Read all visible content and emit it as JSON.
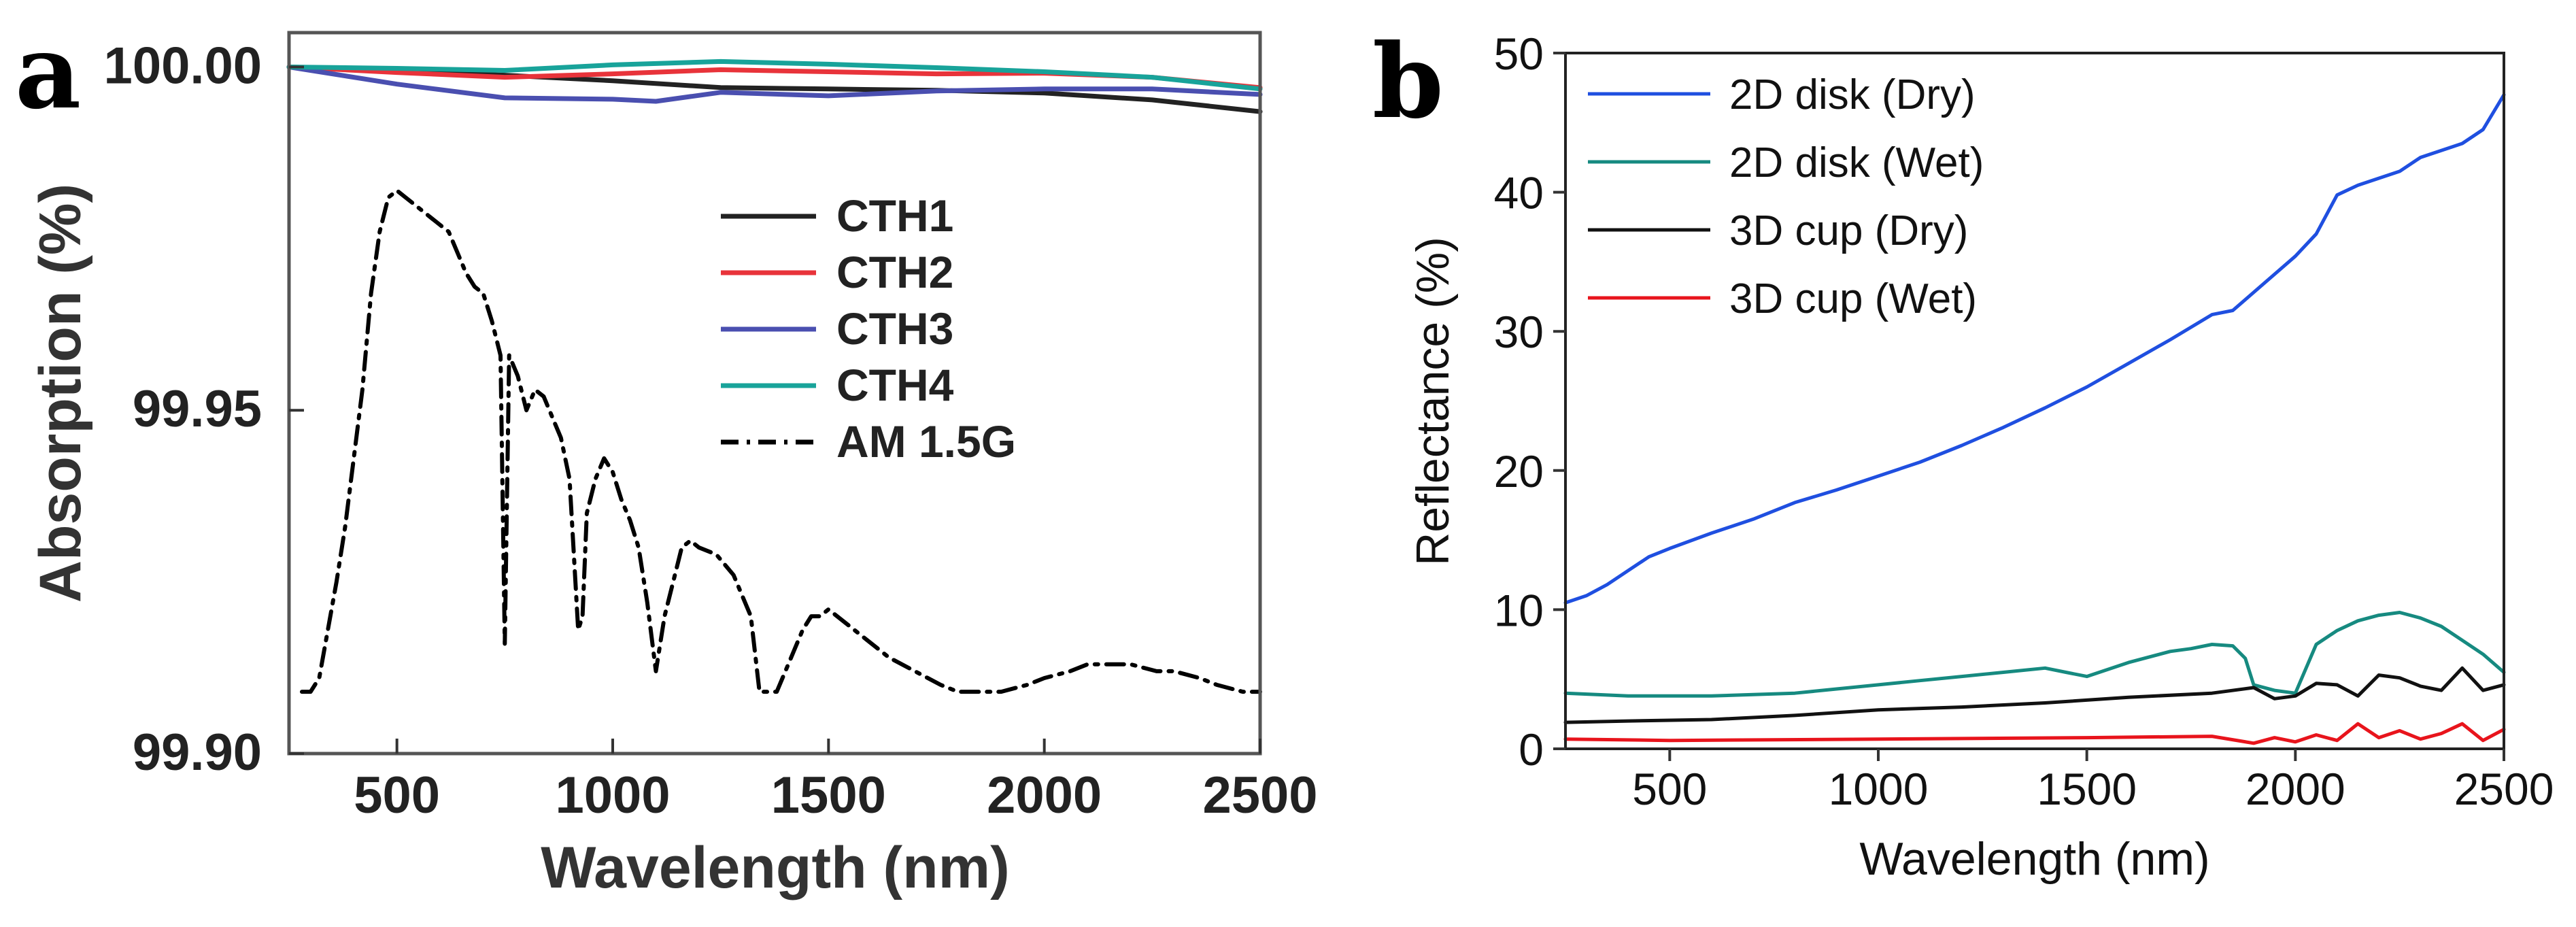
{
  "panels": {
    "a": {
      "letter": "a"
    },
    "b": {
      "letter": "b"
    }
  },
  "chart_data": [
    {
      "id": "a",
      "type": "line",
      "title": "",
      "xlabel": "Wavelength (nm)",
      "ylabel": "Absorption (%)",
      "xlim": [
        250,
        2500
      ],
      "ylim": [
        99.9,
        100.005
      ],
      "xticks": [
        500,
        1000,
        1500,
        2000,
        2500
      ],
      "xtick_labels": [
        "500",
        "1000",
        "1500",
        "2000",
        "2500"
      ],
      "yticks": [
        99.9,
        99.95,
        100.0
      ],
      "ytick_labels": [
        "99.90",
        "99.95",
        "100.00"
      ],
      "grid": false,
      "legend_position": "center-right",
      "series": [
        {
          "name": "CTH1",
          "color": "#222222",
          "style": "solid",
          "x": [
            250,
            500,
            750,
            1000,
            1250,
            1500,
            1750,
            2000,
            2250,
            2500
          ],
          "y": [
            100.0,
            99.9995,
            99.9988,
            99.998,
            99.997,
            99.9968,
            99.9966,
            99.9962,
            99.9952,
            99.9935
          ]
        },
        {
          "name": "CTH2",
          "color": "#e8333a",
          "style": "solid",
          "x": [
            250,
            500,
            750,
            1000,
            1250,
            1500,
            1750,
            2000,
            2250,
            2500
          ],
          "y": [
            100.0,
            99.9992,
            99.9985,
            99.999,
            99.9996,
            99.9993,
            99.999,
            99.9991,
            99.9985,
            99.997
          ]
        },
        {
          "name": "CTH3",
          "color": "#4a4fb0",
          "style": "solid",
          "x": [
            250,
            500,
            750,
            1000,
            1100,
            1250,
            1500,
            1750,
            2000,
            2250,
            2500
          ],
          "y": [
            100.0,
            99.9975,
            99.9955,
            99.9953,
            99.995,
            99.9963,
            99.9958,
            99.9965,
            99.9968,
            99.9968,
            99.996
          ]
        },
        {
          "name": "CTH4",
          "color": "#18a39a",
          "style": "solid",
          "x": [
            250,
            500,
            750,
            1000,
            1250,
            1500,
            1750,
            2000,
            2250,
            2500
          ],
          "y": [
            100.0,
            99.9998,
            99.9995,
            100.0003,
            100.0008,
            100.0004,
            99.9999,
            99.9993,
            99.9985,
            99.9968
          ]
        },
        {
          "name": "AM 1.5G",
          "color": "#000000",
          "style": "dashdot",
          "x": [
            280,
            300,
            320,
            340,
            360,
            380,
            400,
            420,
            440,
            460,
            480,
            500,
            520,
            540,
            560,
            580,
            600,
            620,
            640,
            660,
            680,
            700,
            720,
            740,
            750,
            760,
            780,
            800,
            820,
            840,
            860,
            880,
            900,
            920,
            930,
            940,
            960,
            980,
            1000,
            1020,
            1040,
            1060,
            1080,
            1100,
            1120,
            1140,
            1160,
            1180,
            1200,
            1240,
            1280,
            1320,
            1340,
            1360,
            1380,
            1400,
            1420,
            1440,
            1460,
            1480,
            1500,
            1520,
            1560,
            1600,
            1640,
            1700,
            1760,
            1800,
            1860,
            1900,
            1960,
            2000,
            2060,
            2100,
            2160,
            2200,
            2260,
            2300,
            2360,
            2400,
            2460,
            2500
          ],
          "y": [
            99.909,
            99.909,
            99.911,
            99.918,
            99.925,
            99.933,
            99.943,
            99.953,
            99.967,
            99.976,
            99.981,
            99.982,
            99.981,
            99.98,
            99.979,
            99.978,
            99.977,
            99.976,
            99.973,
            99.97,
            99.968,
            99.967,
            99.963,
            99.958,
            99.916,
            99.958,
            99.955,
            99.95,
            99.953,
            99.952,
            99.949,
            99.946,
            99.94,
            99.918,
            99.92,
            99.935,
            99.94,
            99.943,
            99.941,
            99.937,
            99.934,
            99.93,
            99.922,
            99.912,
            99.92,
            99.925,
            99.93,
            99.931,
            99.93,
            99.929,
            99.926,
            99.92,
            99.909,
            99.909,
            99.909,
            99.912,
            99.915,
            99.918,
            99.92,
            99.92,
            99.921,
            99.92,
            99.918,
            99.916,
            99.914,
            99.912,
            99.91,
            99.909,
            99.909,
            99.909,
            99.91,
            99.911,
            99.912,
            99.913,
            99.913,
            99.913,
            99.912,
            99.912,
            99.911,
            99.91,
            99.909,
            99.909
          ]
        }
      ],
      "legend": [
        "CTH1",
        "CTH2",
        "CTH3",
        "CTH4",
        "AM 1.5G"
      ]
    },
    {
      "id": "b",
      "type": "line",
      "title": "",
      "xlabel": "Wavelength (nm)",
      "ylabel": "Reflectance (%)",
      "xlim": [
        250,
        2500
      ],
      "ylim": [
        0,
        50
      ],
      "xticks": [
        500,
        1000,
        1500,
        2000,
        2500
      ],
      "xtick_labels": [
        "500",
        "1000",
        "1500",
        "2000",
        "2500"
      ],
      "yticks": [
        0,
        10,
        20,
        30,
        40,
        50
      ],
      "ytick_labels": [
        "0",
        "10",
        "20",
        "30",
        "40",
        "50"
      ],
      "grid": false,
      "legend_position": "top-left",
      "series": [
        {
          "name": "2D disk (Dry)",
          "color": "#1f4fe0",
          "style": "solid",
          "x": [
            250,
            300,
            350,
            400,
            450,
            500,
            600,
            700,
            800,
            900,
            1000,
            1100,
            1200,
            1300,
            1400,
            1500,
            1600,
            1700,
            1800,
            1850,
            1900,
            2000,
            2050,
            2100,
            2150,
            2200,
            2250,
            2300,
            2350,
            2400,
            2450,
            2500
          ],
          "y": [
            10.5,
            11,
            11.8,
            12.8,
            13.8,
            14.4,
            15.5,
            16.5,
            17.7,
            18.6,
            19.6,
            20.6,
            21.8,
            23.1,
            24.5,
            26,
            27.7,
            29.4,
            31.2,
            31.5,
            32.8,
            35.4,
            37,
            39.8,
            40.5,
            41,
            41.5,
            42.5,
            43,
            43.5,
            44.5,
            47
          ]
        },
        {
          "name": "2D disk (Wet)",
          "color": "#168a80",
          "style": "solid",
          "x": [
            250,
            400,
            600,
            800,
            900,
            1000,
            1100,
            1200,
            1300,
            1400,
            1450,
            1500,
            1600,
            1700,
            1750,
            1800,
            1850,
            1880,
            1900,
            1950,
            2000,
            2050,
            2100,
            2150,
            2200,
            2250,
            2300,
            2350,
            2400,
            2450,
            2500
          ],
          "y": [
            4,
            3.8,
            3.8,
            4,
            4.3,
            4.6,
            4.9,
            5.2,
            5.5,
            5.8,
            5.5,
            5.2,
            6.2,
            7,
            7.2,
            7.5,
            7.4,
            6.5,
            4.6,
            4.2,
            4,
            7.5,
            8.5,
            9.2,
            9.6,
            9.8,
            9.4,
            8.8,
            7.8,
            6.8,
            5.5
          ]
        },
        {
          "name": "3D cup (Dry)",
          "color": "#111111",
          "style": "solid",
          "x": [
            250,
            400,
            600,
            800,
            1000,
            1200,
            1400,
            1600,
            1800,
            1900,
            1950,
            2000,
            2050,
            2100,
            2150,
            2200,
            2250,
            2300,
            2350,
            2400,
            2450,
            2500
          ],
          "y": [
            1.9,
            2,
            2.1,
            2.4,
            2.8,
            3,
            3.3,
            3.7,
            4,
            4.4,
            3.6,
            3.8,
            4.7,
            4.6,
            3.8,
            5.3,
            5.1,
            4.5,
            4.2,
            5.8,
            4.2,
            4.6
          ]
        },
        {
          "name": "3D cup (Wet)",
          "color": "#e8141c",
          "style": "solid",
          "x": [
            250,
            500,
            1000,
            1500,
            1800,
            1900,
            1950,
            2000,
            2050,
            2100,
            2150,
            2200,
            2250,
            2300,
            2350,
            2400,
            2450,
            2500
          ],
          "y": [
            0.7,
            0.6,
            0.7,
            0.8,
            0.9,
            0.4,
            0.8,
            0.5,
            1,
            0.6,
            1.8,
            0.8,
            1.3,
            0.7,
            1.1,
            1.8,
            0.6,
            1.4
          ]
        }
      ],
      "legend": [
        "2D disk (Dry)",
        "2D disk (Wet)",
        "3D cup (Dry)",
        "3D cup (Wet)"
      ]
    }
  ]
}
